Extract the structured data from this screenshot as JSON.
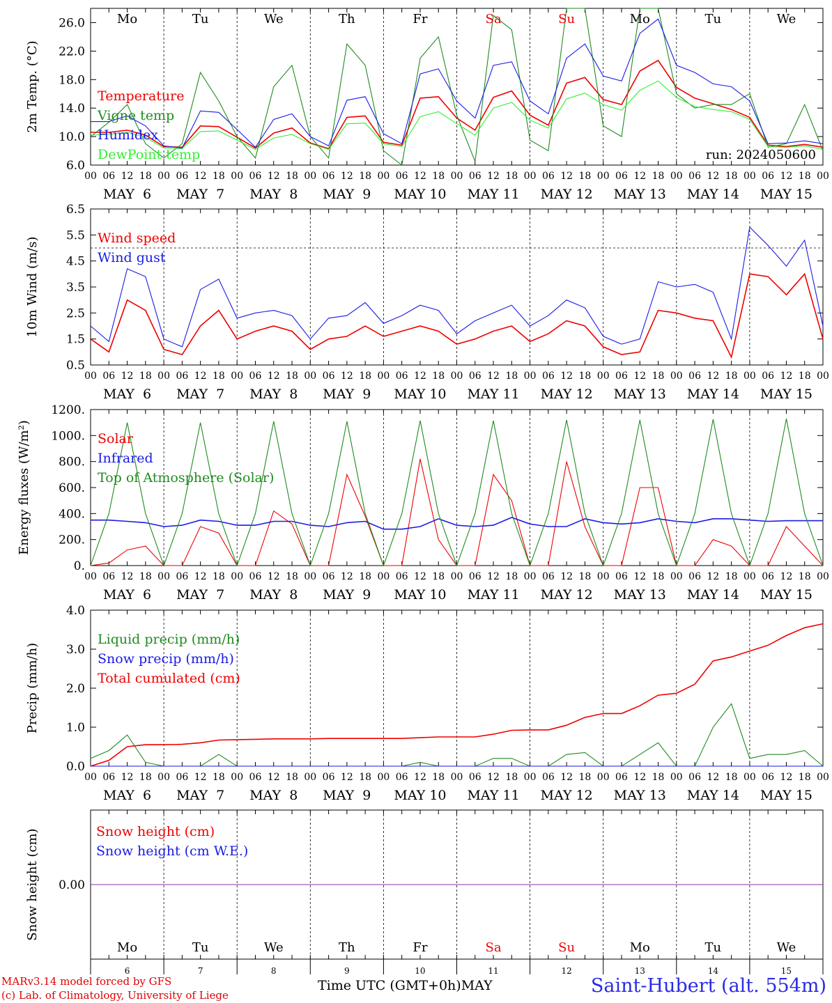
{
  "colors": {
    "red": "#ee0000",
    "green": "#1f8b1f",
    "blue": "#1a1ae6",
    "lightgreen": "#33ee33",
    "purple": "#8a2fa8",
    "black": "#000000"
  },
  "days": {
    "weekday_labels": [
      "Mo",
      "Tu",
      "We",
      "Th",
      "Fr",
      "Sa",
      "Su",
      "Mo",
      "Tu",
      "We"
    ],
    "weekend_indices": [
      5,
      6
    ],
    "date_labels": [
      "MAY  6",
      "MAY  7",
      "MAY  8",
      "MAY  9",
      "MAY 10",
      "MAY 11",
      "MAY 12",
      "MAY 13",
      "MAY 14",
      "MAY 15"
    ],
    "day_numbers": [
      "6",
      "7",
      "8",
      "9",
      "10",
      "11",
      "12",
      "13",
      "14",
      "15"
    ],
    "hour_labels": [
      "00",
      "06",
      "12",
      "18"
    ],
    "final_hour_label": "00"
  },
  "footer": {
    "model_line": "MARv3.14 model forced by GFS",
    "copyright_line": "(c) Lab. of Climatology, University of Liege",
    "axis_label": "Time UTC (GMT+0h)MAY",
    "station_title": "Saint-Hubert (alt. 554m)"
  },
  "chart_data": [
    {
      "id": "temp",
      "type": "line",
      "ylabel": "2m Temp. (°C)",
      "ylim": [
        6,
        28
      ],
      "yticks": [
        "6.0",
        "10.0",
        "14.0",
        "18.0",
        "22.0",
        "26.0"
      ],
      "ytick_values": [
        6,
        10,
        14,
        18,
        22,
        26
      ],
      "annotation": "run: 2024050600",
      "x_hours": [
        0,
        6,
        12,
        18,
        24,
        30,
        36,
        42,
        48,
        54,
        60,
        66,
        72,
        78,
        84,
        90,
        96,
        102,
        108,
        114,
        120,
        126,
        132,
        138,
        144,
        150,
        156,
        162,
        168,
        174,
        180,
        186,
        192,
        198,
        204,
        210,
        216,
        222,
        228,
        234,
        240
      ],
      "series": [
        {
          "name": "Temperature",
          "color": "red",
          "values": [
            10.6,
            10.6,
            10.9,
            10.2,
            8.6,
            8.5,
            11.5,
            11.4,
            9.9,
            8.4,
            10.5,
            11.2,
            9.1,
            8.3,
            12.7,
            12.9,
            9.2,
            8.8,
            15.4,
            15.6,
            12.6,
            10.9,
            15.5,
            16.4,
            13.0,
            11.6,
            17.5,
            18.3,
            15.2,
            14.5,
            19.2,
            20.7,
            16.9,
            15.4,
            14.6,
            13.8,
            12.7,
            8.8,
            8.6,
            8.9,
            8.5
          ]
        },
        {
          "name": "Vigne temp",
          "color": "green",
          "values": [
            10.0,
            12.0,
            14.5,
            9.0,
            7.0,
            9.0,
            19.0,
            15.0,
            10.0,
            7.0,
            17.0,
            20.0,
            10.0,
            7.0,
            23.0,
            20.0,
            8.0,
            5.5,
            21.0,
            24.0,
            13.0,
            6.5,
            27.0,
            25.0,
            9.5,
            8.0,
            28.0,
            28.0,
            11.5,
            10.0,
            28.0,
            28.0,
            16.0,
            14.0,
            14.5,
            14.5,
            16.0,
            8.5,
            9.0,
            14.5,
            8.0
          ]
        },
        {
          "name": "Humidex",
          "color": "blue",
          "values": [
            12.1,
            12.1,
            12.9,
            11.5,
            8.7,
            8.4,
            13.6,
            13.4,
            11.0,
            8.5,
            12.4,
            13.2,
            10.0,
            8.7,
            15.1,
            15.6,
            10.4,
            9.0,
            18.8,
            19.5,
            15.0,
            12.6,
            20.0,
            20.5,
            15.0,
            13.2,
            21.0,
            23.0,
            18.5,
            17.8,
            24.5,
            26.5,
            20.0,
            19.0,
            17.4,
            17.0,
            15.0,
            9.0,
            9.1,
            9.4,
            9.0
          ]
        },
        {
          "name": "DewPoint temp",
          "color": "lightgreen",
          "values": [
            10.2,
            10.3,
            10.6,
            9.9,
            8.4,
            8.3,
            10.7,
            10.8,
            9.5,
            8.2,
            9.8,
            10.3,
            9.0,
            8.2,
            11.8,
            11.9,
            9.0,
            8.6,
            12.8,
            13.5,
            11.8,
            10.2,
            14.0,
            14.8,
            12.3,
            11.2,
            15.3,
            16.1,
            14.5,
            13.7,
            16.5,
            17.8,
            15.5,
            14.2,
            13.8,
            13.5,
            12.4,
            8.6,
            8.5,
            8.7,
            8.2
          ]
        }
      ]
    },
    {
      "id": "wind",
      "type": "line",
      "ylabel": "10m Wind (m/s)",
      "ylim": [
        0.5,
        6.5
      ],
      "yticks": [
        "0.5",
        "1.5",
        "2.5",
        "3.5",
        "4.5",
        "5.5",
        "6.5"
      ],
      "ytick_values": [
        0.5,
        1.5,
        2.5,
        3.5,
        4.5,
        5.5,
        6.5
      ],
      "reference_line": 5.0,
      "x_hours": [
        0,
        6,
        12,
        18,
        24,
        30,
        36,
        42,
        48,
        54,
        60,
        66,
        72,
        78,
        84,
        90,
        96,
        102,
        108,
        114,
        120,
        126,
        132,
        138,
        144,
        150,
        156,
        162,
        168,
        174,
        180,
        186,
        192,
        198,
        204,
        210,
        216,
        222,
        228,
        234,
        240
      ],
      "series": [
        {
          "name": "Wind speed",
          "color": "red",
          "values": [
            1.5,
            1.0,
            3.0,
            2.6,
            1.1,
            0.9,
            2.0,
            2.6,
            1.5,
            1.8,
            2.0,
            1.8,
            1.1,
            1.5,
            1.6,
            2.0,
            1.6,
            1.8,
            2.0,
            1.8,
            1.3,
            1.5,
            1.8,
            2.0,
            1.4,
            1.7,
            2.2,
            2.0,
            1.2,
            0.9,
            1.0,
            2.6,
            2.5,
            2.3,
            2.2,
            0.8,
            4.0,
            3.9,
            3.2,
            4.0,
            1.5
          ]
        },
        {
          "name": "Wind gust",
          "color": "blue",
          "values": [
            2.0,
            1.4,
            4.2,
            3.9,
            1.5,
            1.2,
            3.4,
            3.8,
            2.3,
            2.5,
            2.6,
            2.4,
            1.5,
            2.3,
            2.4,
            2.9,
            2.1,
            2.4,
            2.8,
            2.6,
            1.7,
            2.2,
            2.5,
            2.8,
            2.0,
            2.4,
            3.0,
            2.7,
            1.6,
            1.3,
            1.5,
            3.7,
            3.5,
            3.6,
            3.3,
            1.5,
            5.8,
            5.1,
            4.3,
            5.3,
            2.0
          ]
        }
      ]
    },
    {
      "id": "energy",
      "type": "line",
      "ylabel": "Energy fluxes (W/m²)",
      "ylim": [
        0,
        1200
      ],
      "yticks": [
        "0.",
        "200.",
        "400.",
        "600.",
        "800.",
        "1000.",
        "1200."
      ],
      "ytick_values": [
        0,
        200,
        400,
        600,
        800,
        1000,
        1200
      ],
      "x_hours": [
        0,
        6,
        12,
        18,
        24,
        30,
        36,
        42,
        48,
        54,
        60,
        66,
        72,
        78,
        84,
        90,
        96,
        102,
        108,
        114,
        120,
        126,
        132,
        138,
        144,
        150,
        156,
        162,
        168,
        174,
        180,
        186,
        192,
        198,
        204,
        210,
        216,
        222,
        228,
        234,
        240
      ],
      "series": [
        {
          "name": "Solar",
          "color": "red",
          "values": [
            0,
            20,
            120,
            150,
            0,
            0,
            300,
            250,
            0,
            0,
            420,
            320,
            0,
            0,
            700,
            380,
            0,
            0,
            820,
            200,
            0,
            0,
            700,
            500,
            0,
            0,
            800,
            300,
            0,
            0,
            600,
            600,
            0,
            0,
            200,
            150,
            0,
            0,
            300,
            150,
            0
          ]
        },
        {
          "name": "Infrared",
          "color": "blue",
          "values": [
            350,
            350,
            340,
            330,
            300,
            310,
            350,
            340,
            310,
            310,
            340,
            340,
            310,
            300,
            330,
            340,
            280,
            280,
            300,
            360,
            310,
            300,
            310,
            370,
            320,
            300,
            300,
            360,
            330,
            320,
            330,
            360,
            340,
            330,
            360,
            360,
            350,
            340,
            345,
            345,
            345
          ]
        },
        {
          "name": "Top of Atmosphere (Solar)",
          "color": "green",
          "values": [
            0,
            400,
            1100,
            400,
            0,
            400,
            1100,
            400,
            0,
            400,
            1110,
            400,
            0,
            400,
            1110,
            400,
            0,
            400,
            1115,
            400,
            0,
            400,
            1115,
            400,
            0,
            400,
            1120,
            400,
            0,
            400,
            1120,
            400,
            0,
            400,
            1125,
            400,
            0,
            400,
            1130,
            400,
            0
          ]
        }
      ]
    },
    {
      "id": "precip",
      "type": "line",
      "ylabel": "Precip (mm/h)",
      "ylim": [
        0,
        4
      ],
      "yticks": [
        "0.0",
        "1.0",
        "2.0",
        "3.0",
        "4.0"
      ],
      "ytick_values": [
        0,
        1,
        2,
        3,
        4
      ],
      "x_hours": [
        0,
        6,
        12,
        18,
        24,
        30,
        36,
        42,
        48,
        54,
        60,
        66,
        72,
        78,
        84,
        90,
        96,
        102,
        108,
        114,
        120,
        126,
        132,
        138,
        144,
        150,
        156,
        162,
        168,
        174,
        180,
        186,
        192,
        198,
        204,
        210,
        216,
        222,
        228,
        234,
        240
      ],
      "series": [
        {
          "name": "Liquid precip (mm/h)",
          "color": "green",
          "values": [
            0.2,
            0.4,
            0.8,
            0.1,
            0,
            0,
            0,
            0.3,
            0,
            0,
            0,
            0,
            0,
            0,
            0,
            0,
            0,
            0,
            0.1,
            0,
            0,
            0,
            0.2,
            0.2,
            0,
            0,
            0.3,
            0.35,
            0,
            0,
            0.3,
            0.6,
            0,
            0,
            1.0,
            1.6,
            0.2,
            0.3,
            0.3,
            0.4,
            0
          ]
        },
        {
          "name": "Snow precip (mm/h)",
          "color": "blue",
          "values": [
            0,
            0,
            0,
            0,
            0,
            0,
            0,
            0,
            0,
            0,
            0,
            0,
            0,
            0,
            0,
            0,
            0,
            0,
            0,
            0,
            0,
            0,
            0,
            0,
            0,
            0,
            0,
            0,
            0,
            0,
            0,
            0,
            0,
            0,
            0,
            0,
            0,
            0,
            0,
            0,
            0
          ]
        },
        {
          "name": "Total cumulated (cm)",
          "color": "red",
          "values": [
            0.0,
            0.15,
            0.5,
            0.55,
            0.55,
            0.56,
            0.6,
            0.67,
            0.68,
            0.69,
            0.7,
            0.7,
            0.7,
            0.71,
            0.71,
            0.71,
            0.71,
            0.71,
            0.73,
            0.75,
            0.75,
            0.75,
            0.82,
            0.92,
            0.93,
            0.93,
            1.05,
            1.25,
            1.35,
            1.35,
            1.55,
            1.82,
            1.87,
            2.1,
            2.7,
            2.8,
            2.95,
            3.1,
            3.35,
            3.55,
            3.65
          ]
        }
      ]
    },
    {
      "id": "snow",
      "type": "line",
      "ylabel": "Snow height (cm)",
      "ylim": [
        -1,
        1
      ],
      "yticks": [
        "0.00"
      ],
      "ytick_values": [
        0
      ],
      "x_hours": [
        0,
        240
      ],
      "series": [
        {
          "name": "Snow height (cm)",
          "color": "red",
          "values": [
            0,
            0
          ]
        },
        {
          "name": "Snow height (cm W.E.)",
          "color": "blue",
          "values": [
            0,
            0
          ]
        }
      ]
    }
  ]
}
